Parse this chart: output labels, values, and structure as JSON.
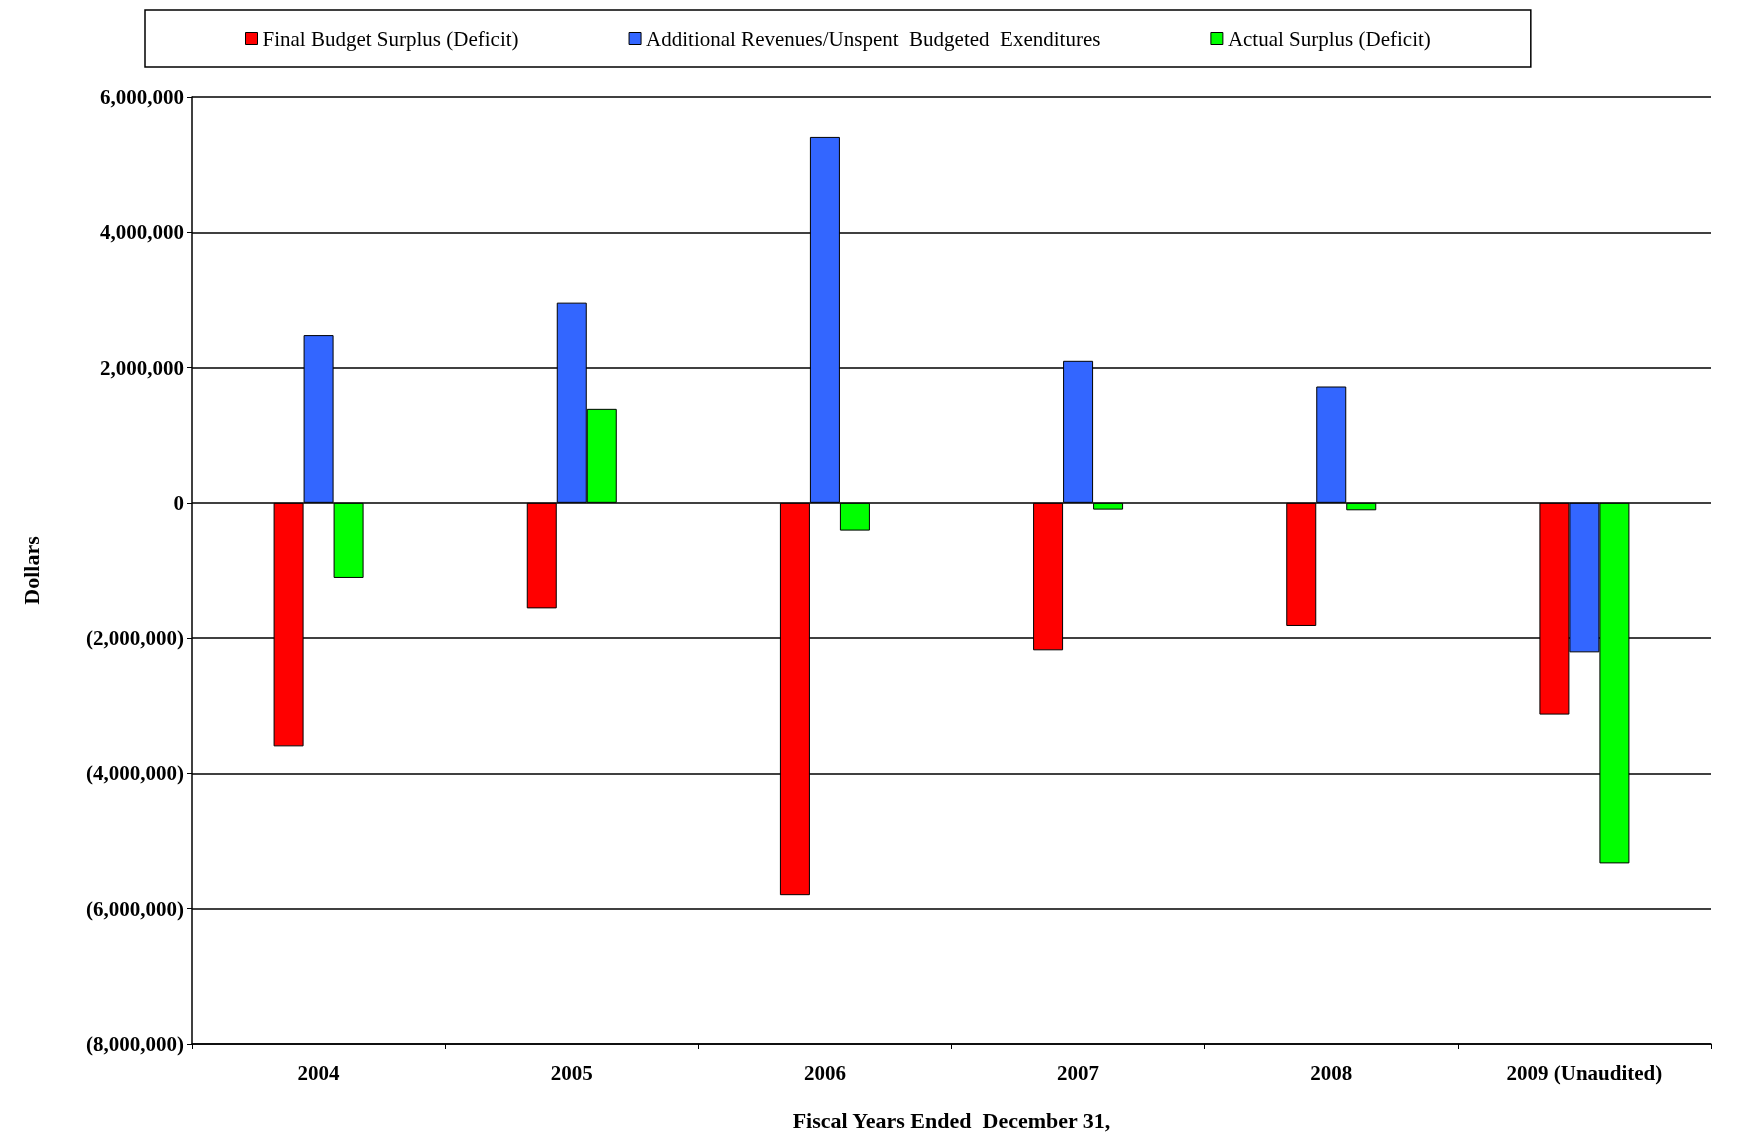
{
  "chart_data": {
    "type": "bar",
    "xlabel": "Fiscal Years Ended  December 31,",
    "ylabel": "Dollars",
    "categories": [
      "2004",
      "2005",
      "2006",
      "2007",
      "2008",
      "2009 (Unaudited)"
    ],
    "series": [
      {
        "name": "Final Budget Surplus (Deficit)",
        "color": "#ff0000",
        "values": [
          -3600000,
          -1560000,
          -5800000,
          -2180000,
          -1820000,
          -3130000
        ]
      },
      {
        "name": "Additional Revenues/Unspent  Budgeted  Exenditures",
        "color": "#3366ff",
        "values": [
          2480000,
          2960000,
          5410000,
          2100000,
          1720000,
          -2210000
        ]
      },
      {
        "name": "Actual Surplus (Deficit)",
        "color": "#00ff00",
        "values": [
          -1110000,
          1390000,
          -410000,
          -100000,
          -110000,
          -5330000
        ]
      }
    ],
    "ylim": [
      -8000000,
      6000000
    ],
    "yticks": [
      {
        "value": -8000000,
        "label": "(8,000,000)"
      },
      {
        "value": -6000000,
        "label": "(6,000,000)"
      },
      {
        "value": -4000000,
        "label": "(4,000,000)"
      },
      {
        "value": -2000000,
        "label": "(2,000,000)"
      },
      0,
      {
        "value": 2000000,
        "label": "2,000,000"
      },
      {
        "value": 4000000,
        "label": "4,000,000"
      },
      {
        "value": 6000000,
        "label": "6,000,000"
      }
    ],
    "grid": "y",
    "legend": "top"
  }
}
